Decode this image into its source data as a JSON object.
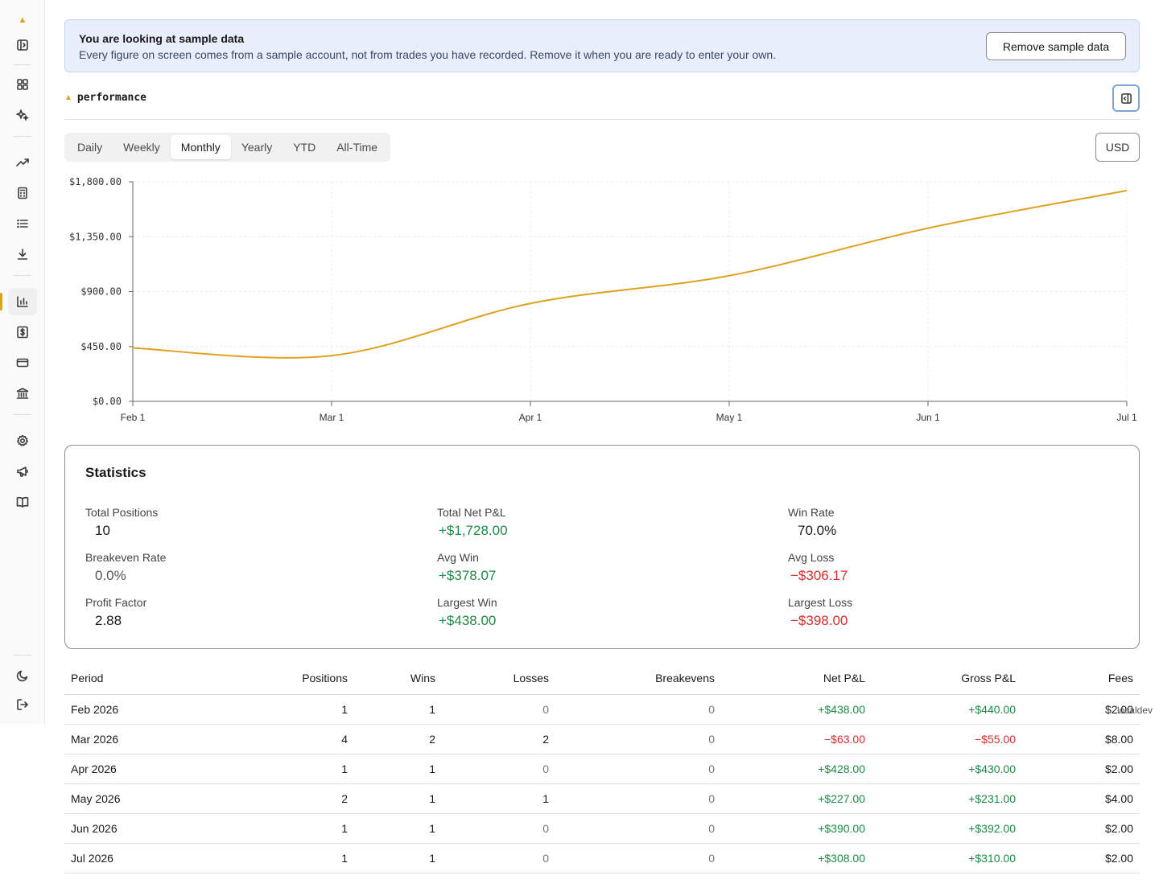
{
  "sidebar": {
    "items": [
      {
        "name": "sidebar-toggle",
        "icon": "panel-icon"
      },
      {
        "name": "dashboard",
        "icon": "grid-icon"
      },
      {
        "name": "insights",
        "icon": "sparkle-icon"
      },
      {
        "name": "trends",
        "icon": "trend-up-icon"
      },
      {
        "name": "calculator",
        "icon": "calculator-icon"
      },
      {
        "name": "trades-list",
        "icon": "list-icon"
      },
      {
        "name": "import",
        "icon": "download-icon"
      },
      {
        "name": "performance",
        "icon": "bar-chart-icon"
      },
      {
        "name": "money",
        "icon": "dollar-icon"
      },
      {
        "name": "cards",
        "icon": "credit-card-icon"
      },
      {
        "name": "bank",
        "icon": "bank-icon"
      },
      {
        "name": "settings",
        "icon": "gear-icon"
      },
      {
        "name": "announcements",
        "icon": "megaphone-icon"
      },
      {
        "name": "docs",
        "icon": "book-icon"
      },
      {
        "name": "theme",
        "icon": "moon-icon"
      },
      {
        "name": "logout",
        "icon": "logout-icon"
      }
    ],
    "active": "performance",
    "accent": "#e0a020"
  },
  "banner": {
    "title": "You are looking at sample data",
    "text": "Every figure on screen comes from a sample account, not from trades you have recorded. Remove it when you are ready to enter your own.",
    "button": "Remove sample data"
  },
  "header": {
    "breadcrumb": "performance"
  },
  "tabs": {
    "items": [
      "Daily",
      "Weekly",
      "Monthly",
      "Yearly",
      "YTD",
      "All-Time"
    ],
    "active": "Monthly"
  },
  "currency": "USD",
  "chart_data": {
    "type": "line",
    "title": "",
    "xlabel": "",
    "ylabel": "",
    "x": [
      "Feb 1",
      "Mar 1",
      "Apr 1",
      "May 1",
      "Jun 1",
      "Jul 1"
    ],
    "y_ticks": [
      "$0.00",
      "$450.00",
      "$900.00",
      "$1,350.00",
      "$1,800.00"
    ],
    "ylim": [
      0,
      1800
    ],
    "series": [
      {
        "values": [
          438,
          375,
          803,
          1030,
          1420,
          1728
        ],
        "color": "#e0a020"
      }
    ],
    "grid": true
  },
  "stats": {
    "title": "Statistics",
    "items": [
      {
        "label": "Total Positions",
        "value": "10",
        "tone": "plain"
      },
      {
        "label": "Total Net P&L",
        "value": "+$1,728.00",
        "tone": "pos"
      },
      {
        "label": "Win Rate",
        "value": "70.0%",
        "tone": "plain"
      },
      {
        "label": "Breakeven Rate",
        "value": "0.0%",
        "tone": "muted"
      },
      {
        "label": "Avg Win",
        "value": "+$378.07",
        "tone": "pos"
      },
      {
        "label": "Avg Loss",
        "value": "−$306.17",
        "tone": "neg"
      },
      {
        "label": "Profit Factor",
        "value": "2.88",
        "tone": "plain"
      },
      {
        "label": "Largest Win",
        "value": "+$438.00",
        "tone": "pos"
      },
      {
        "label": "Largest Loss",
        "value": "−$398.00",
        "tone": "neg"
      }
    ]
  },
  "table": {
    "columns": [
      "Period",
      "Positions",
      "Wins",
      "Losses",
      "Breakevens",
      "Net P&L",
      "Gross P&L",
      "Fees"
    ],
    "rows": [
      [
        "Feb 2026",
        "1",
        "1",
        "0",
        "0",
        "+$438.00",
        "+$440.00",
        "$2.00"
      ],
      [
        "Mar 2026",
        "4",
        "2",
        "2",
        "0",
        "−$63.00",
        "−$55.00",
        "$8.00"
      ],
      [
        "Apr 2026",
        "1",
        "1",
        "0",
        "0",
        "+$428.00",
        "+$430.00",
        "$2.00"
      ],
      [
        "May 2026",
        "2",
        "1",
        "1",
        "0",
        "+$227.00",
        "+$231.00",
        "$4.00"
      ],
      [
        "Jun 2026",
        "1",
        "1",
        "0",
        "0",
        "+$390.00",
        "+$392.00",
        "$2.00"
      ],
      [
        "Jul 2026",
        "1",
        "1",
        "0",
        "0",
        "+$308.00",
        "+$310.00",
        "$2.00"
      ]
    ]
  },
  "env_tag": "localdev"
}
